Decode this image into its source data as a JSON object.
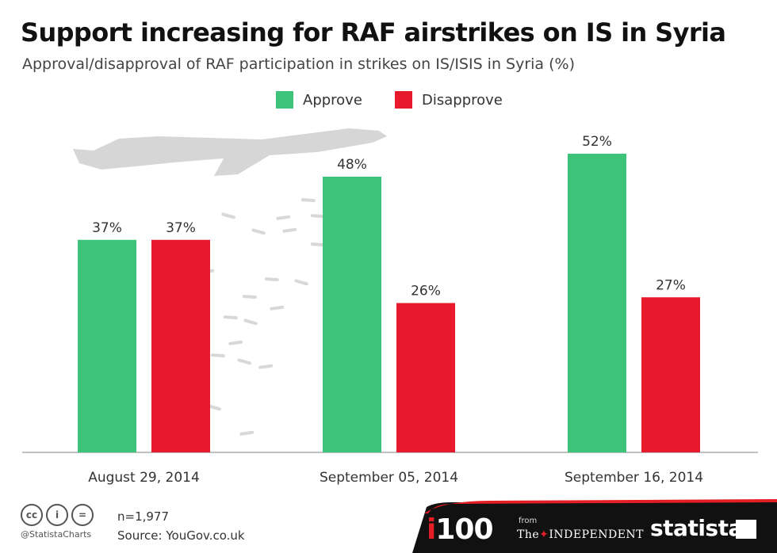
{
  "header": {
    "title": "Support increasing for RAF airstrikes on IS in Syria",
    "subtitle": "Approval/disapproval of RAF participation in strikes on IS/ISIS in Syria (%)"
  },
  "chart_data": {
    "type": "bar",
    "categories": [
      "August 29, 2014",
      "September 05, 2014",
      "September 16, 2014"
    ],
    "series": [
      {
        "name": "Approve",
        "values": [
          37,
          48,
          52
        ],
        "labels": [
          "37%",
          "48%",
          "52%"
        ],
        "color": "#3ec47a"
      },
      {
        "name": "Disapprove",
        "values": [
          37,
          26,
          27
        ],
        "labels": [
          "37%",
          "26%",
          "27%"
        ],
        "color": "#e8192c"
      }
    ],
    "ylim": [
      0,
      60
    ],
    "grid": false,
    "legend": "top-center"
  },
  "footer": {
    "cc_icons": [
      {
        "name": "cc-icon",
        "glyph": "cc"
      },
      {
        "name": "attribution-icon",
        "glyph": "i"
      },
      {
        "name": "no-derivatives-icon",
        "glyph": "="
      }
    ],
    "handle": "@StatistaCharts",
    "sample": "n=1,977",
    "source": "Source: YouGov.co.uk",
    "brand_i_letter": "i",
    "brand_i100_rest": "100",
    "brand_from": "from",
    "brand_the": "The",
    "brand_independent": "INDEPENDENT",
    "brand_statista": "statista"
  },
  "colors": {
    "approve": "#3ec47a",
    "disapprove": "#e8192c",
    "footer_band": "#111111",
    "accent": "#e31e24"
  }
}
